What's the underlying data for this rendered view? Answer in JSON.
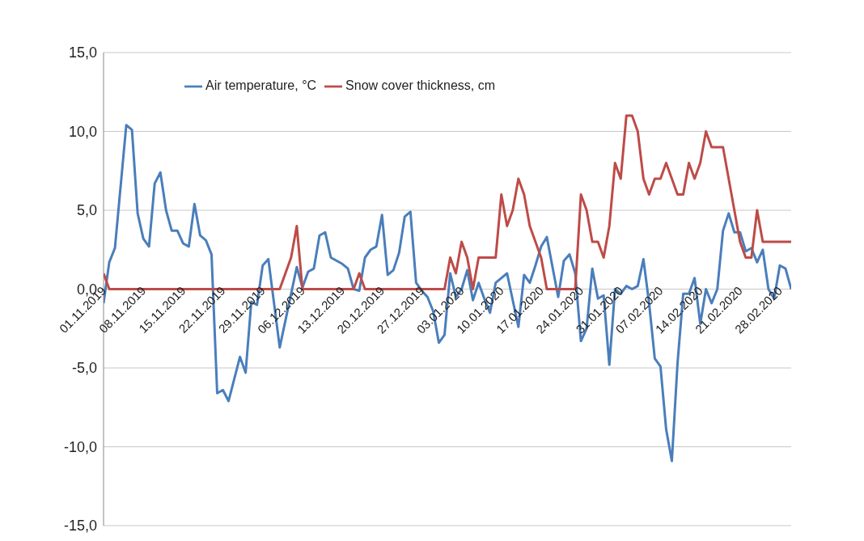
{
  "chart_data": {
    "type": "line",
    "xlim": [
      "2019-11-01",
      "2020-03-01"
    ],
    "xticks": [
      {
        "value": "2019-11-01",
        "label": "01.11.2019"
      },
      {
        "value": "2019-11-08",
        "label": "08.11.2019"
      },
      {
        "value": "2019-11-15",
        "label": "15.11.2019"
      },
      {
        "value": "2019-11-22",
        "label": "22.11.2019"
      },
      {
        "value": "2019-11-29",
        "label": "29.11.2019"
      },
      {
        "value": "2019-12-06",
        "label": "06.12.2019"
      },
      {
        "value": "2019-12-13",
        "label": "13.12.2019"
      },
      {
        "value": "2019-12-20",
        "label": "20.12.2019"
      },
      {
        "value": "2019-12-27",
        "label": "27.12.2019"
      },
      {
        "value": "2020-01-03",
        "label": "03.01.2020"
      },
      {
        "value": "2020-01-10",
        "label": "10.01.2020"
      },
      {
        "value": "2020-01-17",
        "label": "17.01.2020"
      },
      {
        "value": "2020-01-24",
        "label": "24.01.2020"
      },
      {
        "value": "2020-01-31",
        "label": "31.01.2020"
      },
      {
        "value": "2020-02-07",
        "label": "07.02.2020"
      },
      {
        "value": "2020-02-14",
        "label": "14.02.2020"
      },
      {
        "value": "2020-02-21",
        "label": "21.02.2020"
      },
      {
        "value": "2020-02-28",
        "label": "28.02.2020"
      }
    ],
    "ylim": [
      -15,
      15
    ],
    "yticks": [
      {
        "value": -15,
        "label": "-15,0"
      },
      {
        "value": -10,
        "label": "-10,0"
      },
      {
        "value": -5,
        "label": "-5,0"
      },
      {
        "value": 0,
        "label": "0,0"
      },
      {
        "value": 5,
        "label": "5,0"
      },
      {
        "value": 10,
        "label": "10,0"
      },
      {
        "value": 15,
        "label": "15,0"
      }
    ],
    "grid": "y",
    "legend": "top",
    "series": [
      {
        "name": "Air temperature, °C",
        "color": "#4a7ebb",
        "x": [
          "2019-11-01",
          "2019-11-02",
          "2019-11-03",
          "2019-11-05",
          "2019-11-06",
          "2019-11-07",
          "2019-11-08",
          "2019-11-09",
          "2019-11-10",
          "2019-11-11",
          "2019-11-12",
          "2019-11-13",
          "2019-11-14",
          "2019-11-15",
          "2019-11-16",
          "2019-11-17",
          "2019-11-18",
          "2019-11-19",
          "2019-11-20",
          "2019-11-21",
          "2019-11-22",
          "2019-11-23",
          "2019-11-25",
          "2019-11-26",
          "2019-11-27",
          "2019-11-28",
          "2019-11-29",
          "2019-11-30",
          "2019-12-02",
          "2019-12-05",
          "2019-12-06",
          "2019-12-07",
          "2019-12-08",
          "2019-12-09",
          "2019-12-10",
          "2019-12-11",
          "2019-12-13",
          "2019-12-14",
          "2019-12-15",
          "2019-12-16",
          "2019-12-17",
          "2019-12-18",
          "2019-12-19",
          "2019-12-20",
          "2019-12-21",
          "2019-12-22",
          "2019-12-23",
          "2019-12-24",
          "2019-12-25",
          "2019-12-26",
          "2019-12-27",
          "2019-12-28",
          "2019-12-29",
          "2019-12-30",
          "2019-12-31",
          "2020-01-01",
          "2020-01-02",
          "2020-01-03",
          "2020-01-04",
          "2020-01-05",
          "2020-01-06",
          "2020-01-07",
          "2020-01-08",
          "2020-01-09",
          "2020-01-10",
          "2020-01-11",
          "2020-01-13",
          "2020-01-14",
          "2020-01-15",
          "2020-01-16",
          "2020-01-17",
          "2020-01-18",
          "2020-01-20",
          "2020-01-21",
          "2020-01-22",
          "2020-01-23",
          "2020-01-24",
          "2020-01-25",
          "2020-01-26",
          "2020-01-27",
          "2020-01-28",
          "2020-01-29",
          "2020-01-30",
          "2020-01-31",
          "2020-02-01",
          "2020-02-02",
          "2020-02-03",
          "2020-02-04",
          "2020-02-05",
          "2020-02-06",
          "2020-02-07",
          "2020-02-08",
          "2020-02-09",
          "2020-02-10",
          "2020-02-11",
          "2020-02-12",
          "2020-02-13",
          "2020-02-14",
          "2020-02-15",
          "2020-02-16",
          "2020-02-17",
          "2020-02-18",
          "2020-02-19",
          "2020-02-20",
          "2020-02-21",
          "2020-02-22",
          "2020-02-23",
          "2020-02-24",
          "2020-02-25",
          "2020-02-26",
          "2020-02-27",
          "2020-02-28",
          "2020-02-29",
          "2020-03-01"
        ],
        "values": [
          -0.9,
          1.7,
          2.6,
          10.4,
          10.1,
          4.8,
          3.2,
          2.7,
          6.7,
          7.4,
          5.0,
          3.7,
          3.7,
          2.9,
          2.7,
          5.4,
          3.4,
          3.1,
          2.2,
          -6.6,
          -6.4,
          -7.1,
          -4.3,
          -5.3,
          -0.8,
          -1.0,
          1.5,
          1.9,
          -3.7,
          1.4,
          0.1,
          1.1,
          1.3,
          3.4,
          3.6,
          2.0,
          1.6,
          1.3,
          0.0,
          -0.1,
          2.0,
          2.5,
          2.7,
          4.7,
          0.9,
          1.2,
          2.3,
          4.6,
          4.9,
          0.4,
          -0.1,
          -0.5,
          -1.4,
          -3.4,
          -2.9,
          1.0,
          -0.5,
          0.0,
          1.2,
          -0.7,
          0.4,
          -0.6,
          -1.5,
          0.4,
          0.7,
          1.0,
          -2.4,
          0.9,
          0.4,
          1.5,
          2.7,
          3.3,
          -0.5,
          1.8,
          2.2,
          1.0,
          -3.3,
          -2.5,
          1.3,
          -0.6,
          -0.4,
          -4.8,
          0.0,
          -0.3,
          0.2,
          0.0,
          0.2,
          1.9,
          -0.9,
          -4.4,
          -4.9,
          -8.9,
          -10.9,
          -4.7,
          -0.3,
          -0.3,
          0.7,
          -2.2,
          0.0,
          -0.9,
          0.0,
          3.7,
          4.8,
          3.6,
          3.6,
          2.4,
          2.6,
          1.7,
          2.5,
          0.0,
          -0.6,
          1.5,
          1.3,
          0.0
        ]
      },
      {
        "name": "Snow cover thickness, cm",
        "color": "#be4b48",
        "x": [
          "2019-11-01",
          "2019-11-02",
          "2019-12-02",
          "2019-12-04",
          "2019-12-05",
          "2019-12-06",
          "2019-12-15",
          "2019-12-16",
          "2019-12-17",
          "2019-12-31",
          "2020-01-01",
          "2020-01-02",
          "2020-01-03",
          "2020-01-04",
          "2020-01-05",
          "2020-01-06",
          "2020-01-09",
          "2020-01-10",
          "2020-01-11",
          "2020-01-12",
          "2020-01-13",
          "2020-01-14",
          "2020-01-15",
          "2020-01-16",
          "2020-01-17",
          "2020-01-18",
          "2020-01-23",
          "2020-01-24",
          "2020-01-25",
          "2020-01-26",
          "2020-01-27",
          "2020-01-28",
          "2020-01-29",
          "2020-01-30",
          "2020-01-31",
          "2020-02-01",
          "2020-02-02",
          "2020-02-03",
          "2020-02-04",
          "2020-02-05",
          "2020-02-06",
          "2020-02-07",
          "2020-02-08",
          "2020-02-09",
          "2020-02-10",
          "2020-02-11",
          "2020-02-12",
          "2020-02-13",
          "2020-02-14",
          "2020-02-15",
          "2020-02-16",
          "2020-02-17",
          "2020-02-18",
          "2020-02-19",
          "2020-02-20",
          "2020-02-21",
          "2020-02-22",
          "2020-02-23",
          "2020-02-24",
          "2020-02-25",
          "2020-03-01"
        ],
        "values": [
          1,
          0,
          0,
          2,
          4,
          0,
          0,
          1,
          0,
          0,
          2,
          1,
          3,
          2,
          0,
          2,
          2,
          6,
          4,
          5,
          7,
          6,
          4,
          3,
          2,
          0,
          0,
          6,
          5,
          3,
          3,
          2,
          4,
          8,
          7,
          11,
          11,
          10,
          7,
          6,
          7,
          7,
          8,
          7,
          6,
          6,
          8,
          7,
          8,
          10,
          9,
          9,
          9,
          7,
          5,
          3,
          2,
          2,
          5,
          3,
          3
        ]
      }
    ]
  }
}
